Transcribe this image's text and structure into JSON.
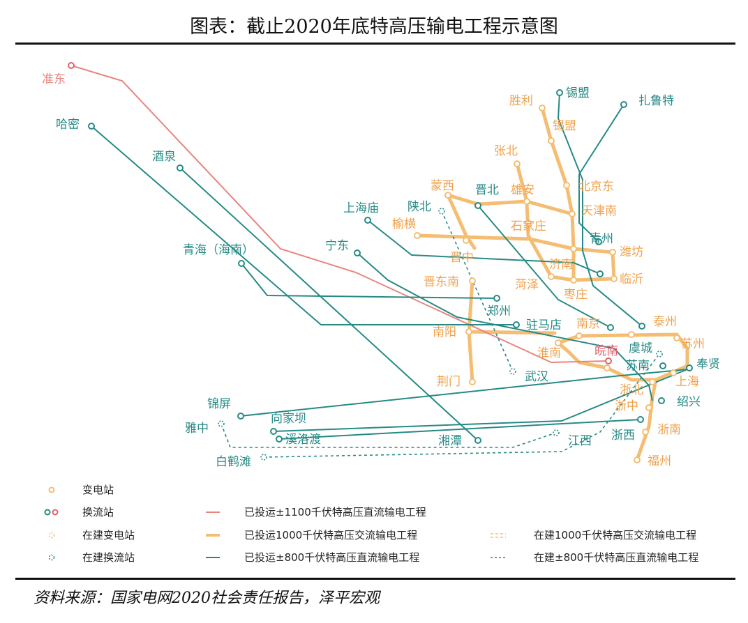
{
  "title": "图表：截止2020年底特高压输电工程示意图",
  "source": "资料来源：国家电网2020社会责任报告，泽平宏观",
  "colors": {
    "uhv_dc_1100": "#e8857f",
    "uhv_ac": "#f5bd72",
    "uhv_dc_800": "#258a85",
    "dc_red_station": "#e0606b"
  },
  "stations": {
    "zhundong": "准东",
    "hami": "哈密",
    "jiuquan": "酒泉",
    "qinghai": "青海（海南）",
    "ningdong": "宁东",
    "shanghaimiao": "上海庙",
    "shanbei": "陕北",
    "yuheng": "榆横",
    "mengxi": "蒙西",
    "jinbei": "晋北",
    "zhangbei": "张北",
    "xiongan": "雄安",
    "shengli": "胜利",
    "ximeng_dc": "锡盟",
    "ximeng_ac": "锡盟",
    "zhaluote": "扎鲁特",
    "beijingdong": "北京东",
    "tianjinnan": "天津南",
    "shijiazhuang": "石家庄",
    "qingzhou": "青州",
    "weifang": "潍坊",
    "jinzhong": "晋中",
    "jinan": "济南",
    "linyi": "临沂",
    "heze": "菏泽",
    "zaozhuang": "枣庄",
    "jindongnan": "晋东南",
    "zhengzhou": "郑州",
    "zhumadian": "驻马店",
    "nanyang": "南阳",
    "huainan": "淮南",
    "nanjing": "南京",
    "taizhou": "泰州",
    "suzhou": "苏州",
    "wannan": "皖南",
    "yucheng": "虞城",
    "sunan": "苏南",
    "fengxian": "奉贤",
    "shanghai": "上海",
    "jingmen": "荆门",
    "wuhan": "武汉",
    "zhebei": "浙北",
    "shaoxing": "绍兴",
    "zhezhong": "浙中",
    "zhenan": "浙南",
    "fuzhou": "福州",
    "jinping": "锦屏",
    "xiangjiaba": "向家坝",
    "yazhong": "雅中",
    "xiluodu": "溪洛渡",
    "xiangtan": "湘潭",
    "jiangxi": "江西",
    "zhexi": "浙西",
    "baihetan": "白鹤滩"
  },
  "legend": {
    "substation": "变电站",
    "converter": "换流站",
    "substation_building": "在建变电站",
    "converter_building": "在建换流站",
    "dc1100": "已投运±1100千伏特高压直流输电工程",
    "ac1000": "已投运1000千伏特高压交流输电工程",
    "dc800": "已投运±800千伏特高压直流输电工程",
    "ac1000_building": "在建1000千伏特高压交流输电工程",
    "dc800_building": "在建±800千伏特高压直流输电工程"
  }
}
